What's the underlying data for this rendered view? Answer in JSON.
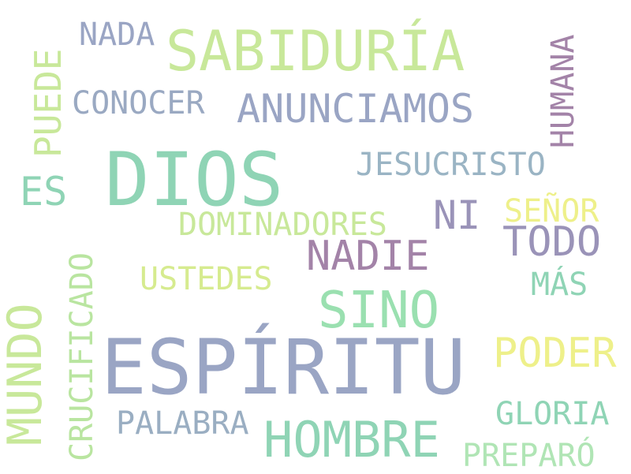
{
  "words": [
    {
      "text": "SABIDURÍA",
      "color": "#c8e89a"
    },
    {
      "text": "DIOS",
      "color": "#8fd4b5"
    },
    {
      "text": "ESPÍRITU",
      "color": "#9aa5c4"
    },
    {
      "text": "NADA",
      "color": "#9aa5c4"
    },
    {
      "text": "CONOCER",
      "color": "#9aa9c2"
    },
    {
      "text": "ANUNCIAMOS",
      "color": "#9aa5c4"
    },
    {
      "text": "HUMANA",
      "color": "#a383a8"
    },
    {
      "text": "PUEDE",
      "color": "#c8e89a"
    },
    {
      "text": "ES",
      "color": "#8fd4b5"
    },
    {
      "text": "JESUCRISTO",
      "color": "#9ab4c4"
    },
    {
      "text": "NI",
      "color": "#9a93b8"
    },
    {
      "text": "SEÑOR",
      "color": "#eef08a"
    },
    {
      "text": "DOMINADORES",
      "color": "#c8e89a"
    },
    {
      "text": "TODO",
      "color": "#9a93b8"
    },
    {
      "text": "NADIE",
      "color": "#a383a8"
    },
    {
      "text": "USTEDES",
      "color": "#d6eb8f"
    },
    {
      "text": "MÁS",
      "color": "#8fd4b5"
    },
    {
      "text": "SINO",
      "color": "#9ae0b0"
    },
    {
      "text": "CRUCIFICADO",
      "color": "#b9e5a0"
    },
    {
      "text": "MUNDO",
      "color": "#c8e89a"
    },
    {
      "text": "PODER",
      "color": "#eef08a"
    },
    {
      "text": "PALABRA",
      "color": "#9aaec2"
    },
    {
      "text": "HOMBRE",
      "color": "#8fd4b5"
    },
    {
      "text": "GLORIA",
      "color": "#8fd4b5"
    },
    {
      "text": "PREPARÓ",
      "color": "#b0e5b5"
    }
  ]
}
